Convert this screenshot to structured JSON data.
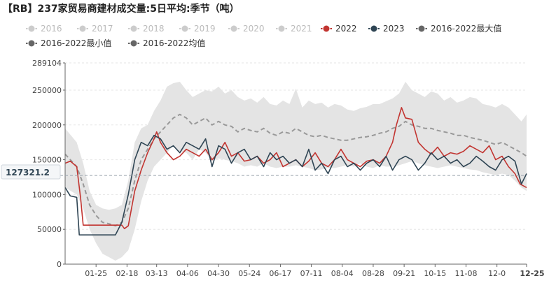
{
  "title": "【RB】237家贸易商建材成交量:5日平均:季节（吨）",
  "cursor_label": "127321.2",
  "chart_data": {
    "type": "line",
    "title": "【RB】237家贸易商建材成交量:5日平均:季节（吨）",
    "ylim": [
      0,
      289104
    ],
    "yticks": [
      0,
      50000,
      100000,
      150000,
      200000,
      250000,
      289104
    ],
    "x_ticks": [
      "01-25",
      "02-18",
      "03-13",
      "04-06",
      "04-30",
      "05-24",
      "06-17",
      "07-11",
      "08-04",
      "08-28",
      "09-21",
      "10-15",
      "11-08",
      "12-0",
      "12-25"
    ],
    "x_tick_days": [
      25,
      49,
      72,
      96,
      120,
      144,
      168,
      192,
      216,
      240,
      264,
      288,
      312,
      336,
      359
    ],
    "x_range": [
      1,
      359
    ],
    "cursor_value": 127321.2,
    "legend": [
      {
        "name": "2016",
        "color": "#cccccc",
        "inactive": true
      },
      {
        "name": "2017",
        "color": "#cccccc",
        "inactive": true
      },
      {
        "name": "2018",
        "color": "#cccccc",
        "inactive": true
      },
      {
        "name": "2019",
        "color": "#cccccc",
        "inactive": true
      },
      {
        "name": "2020",
        "color": "#cccccc",
        "inactive": true
      },
      {
        "name": "2021",
        "color": "#cccccc",
        "inactive": true
      },
      {
        "name": "2022",
        "color": "#c23531",
        "inactive": false
      },
      {
        "name": "2023",
        "color": "#2f4554",
        "inactive": false
      },
      {
        "name": "2016-2022最大值",
        "color": "#666666",
        "inactive": false
      },
      {
        "name": "2016-2022最小值",
        "color": "#666666",
        "inactive": false
      },
      {
        "name": "2016-2022均值",
        "color": "#666666",
        "inactive": false
      }
    ],
    "band_max": {
      "x": [
        1,
        10,
        15,
        20,
        25,
        30,
        35,
        40,
        45,
        50,
        55,
        60,
        65,
        70,
        75,
        80,
        85,
        90,
        95,
        100,
        105,
        110,
        115,
        120,
        125,
        130,
        135,
        140,
        145,
        150,
        155,
        160,
        165,
        170,
        175,
        180,
        185,
        190,
        195,
        200,
        205,
        210,
        215,
        220,
        225,
        230,
        235,
        240,
        245,
        250,
        255,
        260,
        265,
        270,
        275,
        280,
        285,
        290,
        295,
        300,
        305,
        310,
        315,
        320,
        325,
        330,
        335,
        340,
        345,
        350,
        355,
        359
      ],
      "y": [
        195000,
        175000,
        145000,
        105000,
        85000,
        80000,
        78000,
        80000,
        85000,
        120000,
        175000,
        195000,
        200000,
        220000,
        235000,
        255000,
        260000,
        262000,
        250000,
        240000,
        245000,
        250000,
        248000,
        255000,
        245000,
        250000,
        240000,
        235000,
        238000,
        232000,
        240000,
        230000,
        228000,
        235000,
        230000,
        252000,
        225000,
        235000,
        230000,
        232000,
        225000,
        230000,
        228000,
        222000,
        220000,
        224000,
        226000,
        230000,
        230000,
        234000,
        238000,
        245000,
        262000,
        250000,
        245000,
        240000,
        248000,
        245000,
        235000,
        240000,
        232000,
        235000,
        240000,
        238000,
        230000,
        228000,
        225000,
        230000,
        225000,
        215000,
        205000,
        215000
      ]
    },
    "band_min": {
      "x": [
        1,
        10,
        15,
        20,
        25,
        30,
        35,
        40,
        45,
        50,
        55,
        60,
        65,
        70,
        75,
        80,
        85,
        90,
        95,
        100,
        105,
        110,
        115,
        120,
        125,
        130,
        135,
        140,
        145,
        150,
        155,
        160,
        165,
        170,
        175,
        180,
        185,
        190,
        195,
        200,
        205,
        210,
        215,
        220,
        225,
        230,
        235,
        240,
        245,
        250,
        255,
        260,
        265,
        270,
        275,
        280,
        285,
        290,
        295,
        300,
        305,
        310,
        315,
        320,
        325,
        330,
        335,
        340,
        345,
        350,
        355,
        359
      ],
      "y": [
        110000,
        100000,
        80000,
        50000,
        30000,
        15000,
        10000,
        5000,
        10000,
        20000,
        50000,
        90000,
        120000,
        140000,
        150000,
        160000,
        170000,
        162000,
        160000,
        150000,
        165000,
        160000,
        148000,
        152000,
        150000,
        148000,
        145000,
        140000,
        142000,
        140000,
        145000,
        140000,
        138000,
        140000,
        140000,
        142000,
        140000,
        138000,
        135000,
        136000,
        138000,
        138000,
        140000,
        142000,
        140000,
        145000,
        140000,
        138000,
        142000,
        140000,
        140000,
        142000,
        145000,
        148000,
        145000,
        142000,
        140000,
        138000,
        140000,
        142000,
        140000,
        138000,
        136000,
        135000,
        132000,
        130000,
        128000,
        130000,
        128000,
        120000,
        110000,
        105000
      ]
    },
    "series": [
      {
        "name": "2016-2022均值",
        "color": "#999999",
        "dashed": true,
        "x": [
          1,
          10,
          15,
          20,
          25,
          30,
          35,
          40,
          45,
          50,
          55,
          60,
          65,
          70,
          75,
          80,
          85,
          90,
          95,
          100,
          105,
          110,
          115,
          120,
          125,
          130,
          135,
          140,
          145,
          150,
          155,
          160,
          165,
          170,
          175,
          180,
          185,
          190,
          195,
          200,
          205,
          210,
          215,
          220,
          225,
          230,
          235,
          240,
          245,
          250,
          255,
          260,
          265,
          270,
          275,
          280,
          285,
          290,
          295,
          300,
          305,
          310,
          315,
          320,
          325,
          330,
          335,
          340,
          345,
          350,
          355,
          359
        ],
        "y": [
          158000,
          140000,
          115000,
          85000,
          70000,
          60000,
          58000,
          55000,
          60000,
          80000,
          120000,
          150000,
          165000,
          180000,
          190000,
          200000,
          210000,
          215000,
          210000,
          200000,
          205000,
          210000,
          200000,
          205000,
          200000,
          198000,
          190000,
          195000,
          192000,
          190000,
          195000,
          188000,
          185000,
          190000,
          188000,
          195000,
          190000,
          185000,
          183000,
          185000,
          182000,
          180000,
          178000,
          178000,
          180000,
          182000,
          183000,
          185000,
          188000,
          190000,
          195000,
          198000,
          205000,
          200000,
          198000,
          195000,
          195000,
          192000,
          190000,
          188000,
          185000,
          185000,
          182000,
          180000,
          178000,
          175000,
          172000,
          175000,
          170000,
          165000,
          160000,
          155000
        ]
      },
      {
        "name": "2022",
        "color": "#c23531",
        "dashed": false,
        "x": [
          1,
          5,
          10,
          13,
          15,
          20,
          25,
          30,
          35,
          40,
          45,
          47,
          50,
          55,
          60,
          65,
          70,
          72,
          75,
          80,
          85,
          90,
          95,
          100,
          105,
          110,
          115,
          120,
          125,
          130,
          135,
          140,
          145,
          150,
          155,
          160,
          165,
          170,
          175,
          180,
          185,
          190,
          195,
          200,
          205,
          210,
          215,
          220,
          225,
          230,
          235,
          240,
          245,
          250,
          255,
          258,
          262,
          265,
          270,
          275,
          280,
          285,
          290,
          295,
          300,
          305,
          310,
          315,
          320,
          325,
          330,
          335,
          340,
          345,
          350,
          354,
          359
        ],
        "y": [
          145000,
          148000,
          140000,
          95000,
          56000,
          56000,
          56000,
          56000,
          56000,
          56000,
          56000,
          51000,
          55000,
          105000,
          135000,
          160000,
          180000,
          190000,
          175000,
          160000,
          150000,
          155000,
          165000,
          160000,
          155000,
          165000,
          150000,
          160000,
          175000,
          155000,
          160000,
          148000,
          150000,
          155000,
          145000,
          150000,
          160000,
          140000,
          145000,
          150000,
          140000,
          148000,
          160000,
          145000,
          140000,
          150000,
          165000,
          150000,
          145000,
          140000,
          148000,
          150000,
          145000,
          155000,
          175000,
          200000,
          225000,
          210000,
          208000,
          175000,
          165000,
          158000,
          168000,
          155000,
          160000,
          158000,
          162000,
          170000,
          165000,
          160000,
          170000,
          150000,
          155000,
          140000,
          130000,
          115000,
          110000
        ]
      },
      {
        "name": "2023",
        "color": "#2f4554",
        "dashed": false,
        "x": [
          1,
          5,
          10,
          12,
          15,
          20,
          25,
          30,
          35,
          40,
          45,
          50,
          55,
          60,
          65,
          70,
          75,
          80,
          85,
          90,
          95,
          100,
          105,
          110,
          115,
          120,
          125,
          130,
          135,
          140,
          145,
          150,
          155,
          160,
          165,
          170,
          175,
          180,
          185,
          190,
          195,
          200,
          205,
          210,
          215,
          220,
          225,
          230,
          235,
          240,
          245,
          250,
          255,
          260,
          265,
          270,
          275,
          280,
          285,
          290,
          295,
          300,
          305,
          310,
          315,
          320,
          325,
          330,
          335,
          340,
          345,
          350,
          355,
          359
        ],
        "y": [
          110000,
          98000,
          96000,
          42000,
          42000,
          42000,
          42000,
          42000,
          42000,
          42000,
          60000,
          100000,
          150000,
          175000,
          170000,
          185000,
          180000,
          165000,
          170000,
          160000,
          175000,
          170000,
          165000,
          180000,
          140000,
          170000,
          165000,
          145000,
          160000,
          165000,
          150000,
          155000,
          140000,
          160000,
          150000,
          155000,
          145000,
          150000,
          140000,
          165000,
          135000,
          145000,
          130000,
          150000,
          155000,
          140000,
          145000,
          135000,
          145000,
          150000,
          140000,
          155000,
          135000,
          150000,
          155000,
          150000,
          135000,
          145000,
          160000,
          150000,
          155000,
          145000,
          150000,
          140000,
          145000,
          155000,
          148000,
          140000,
          135000,
          150000,
          155000,
          148000,
          115000,
          130000
        ]
      }
    ]
  }
}
